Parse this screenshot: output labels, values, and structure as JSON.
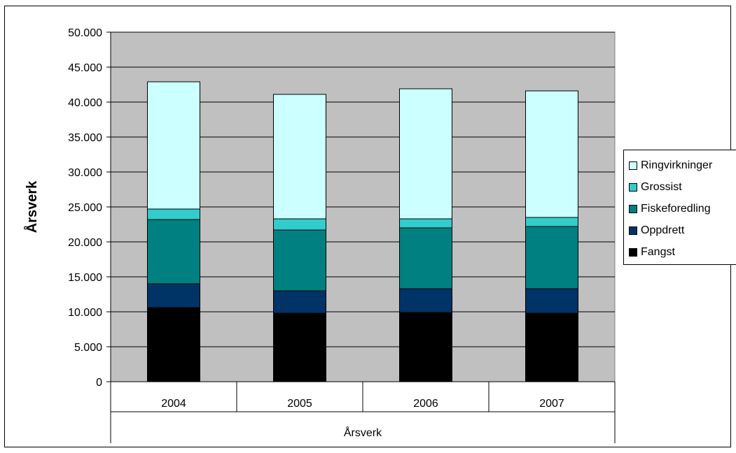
{
  "chart_data": {
    "type": "bar",
    "stacked": true,
    "categories": [
      "2004",
      "2005",
      "2006",
      "2007"
    ],
    "category_axis_title": "Årsverk",
    "ylabel": "Årsverk",
    "ylim": [
      0,
      50000
    ],
    "yticks": [
      "0",
      "5.000",
      "10.000",
      "15.000",
      "20.000",
      "25.000",
      "30.000",
      "35.000",
      "40.000",
      "45.000",
      "50.000"
    ],
    "grid": true,
    "legend_position": "right",
    "plot_background": "#c0c0c0",
    "series": [
      {
        "name": "Fangst",
        "color": "#000000",
        "values": [
          10600,
          9800,
          9900,
          9800
        ]
      },
      {
        "name": "Oppdrett",
        "color": "#003366",
        "values": [
          3400,
          3200,
          3400,
          3500
        ]
      },
      {
        "name": "Fiskeforedling",
        "color": "#008080",
        "values": [
          9200,
          8700,
          8700,
          8900
        ]
      },
      {
        "name": "Grossist",
        "color": "#33cccc",
        "values": [
          1500,
          1600,
          1300,
          1300
        ]
      },
      {
        "name": "Ringvirkninger",
        "color": "#ccffff",
        "values": [
          18200,
          17800,
          18600,
          18100
        ]
      }
    ]
  }
}
